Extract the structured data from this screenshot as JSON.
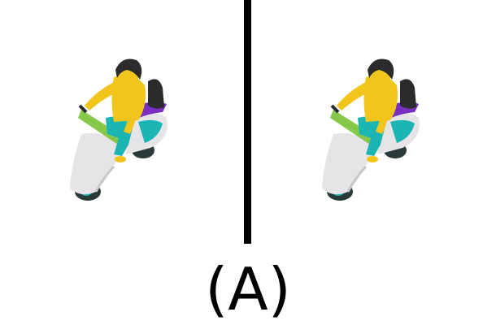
{
  "caption": "(A)",
  "panels": [
    {
      "icon": "scooter-rider-icon"
    },
    {
      "icon": "scooter-rider-icon"
    }
  ],
  "colors": {
    "divider": "#000000",
    "scooter_body": "#e6e4e6",
    "shirt": "#f2c51c",
    "pants": "#1bb6b4",
    "hair": "#2b2b2b",
    "seat": "#7a2fc0",
    "wheel": "#2a3a38",
    "handlebar": "#86c84a"
  }
}
